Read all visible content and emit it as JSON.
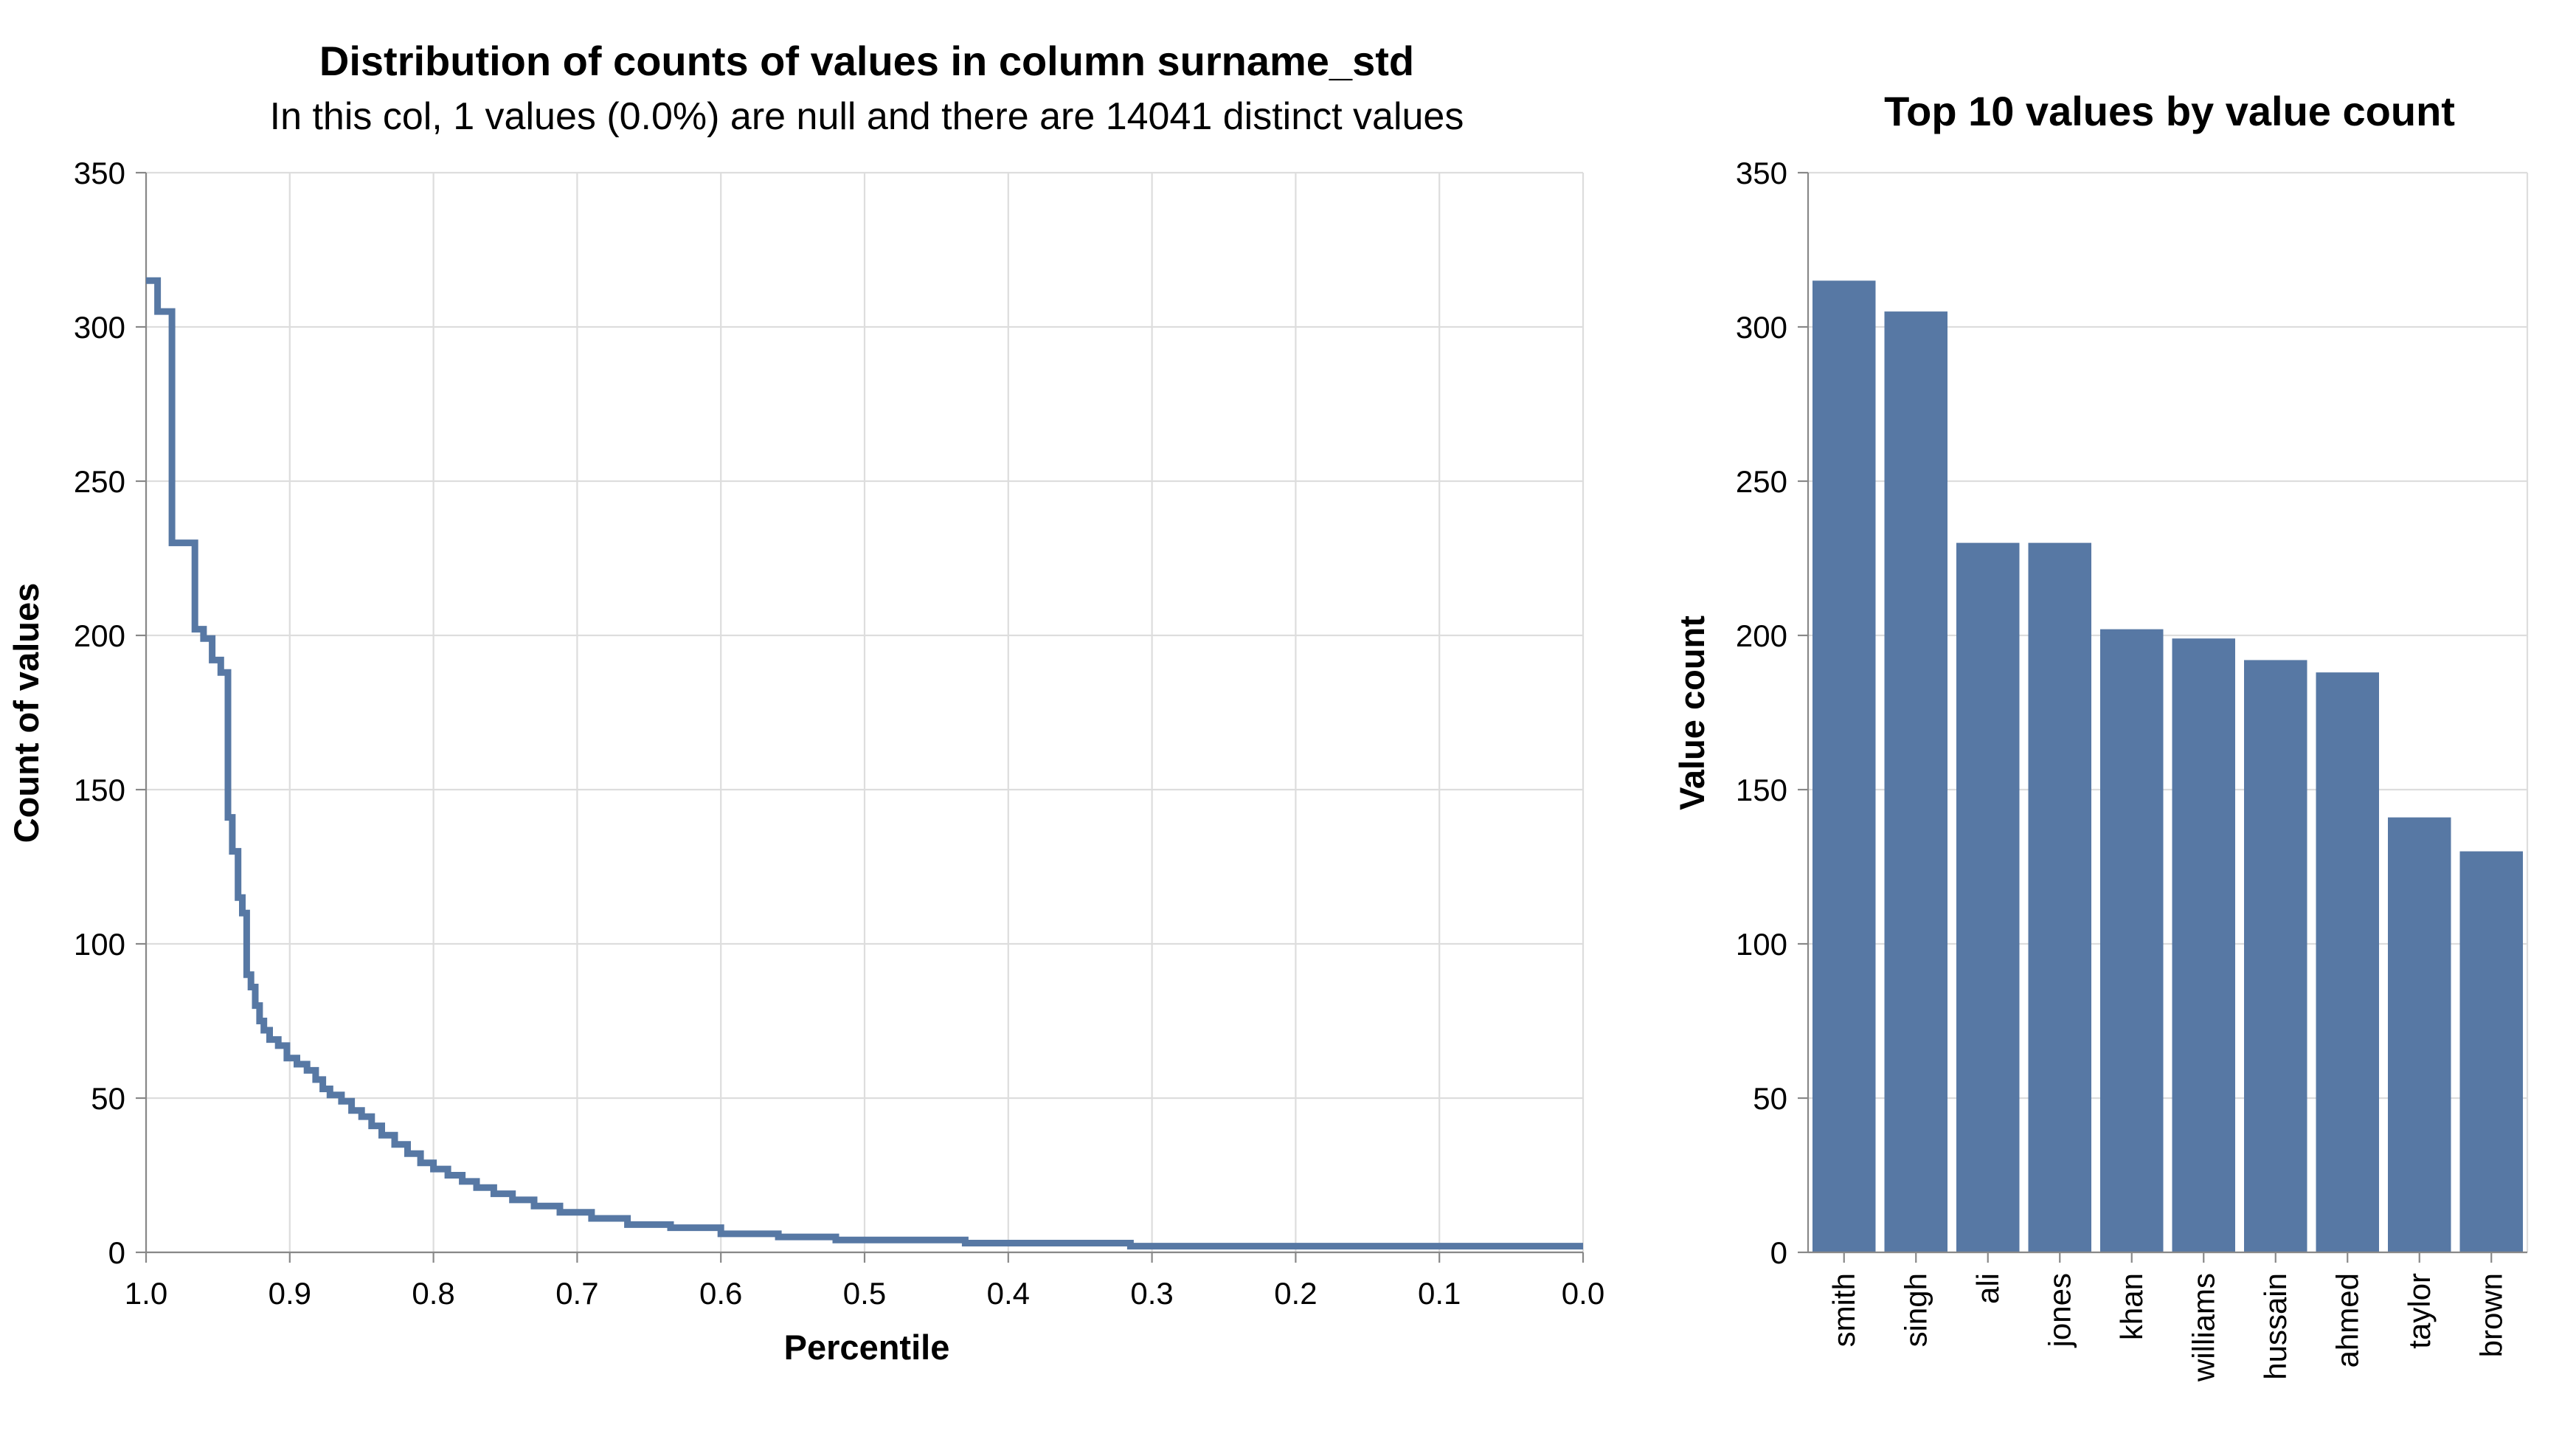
{
  "chart_data": [
    {
      "type": "line",
      "interpolation": "step",
      "title": "Distribution of counts of values in column surname_std",
      "subtitle": "In this col, 1 values (0.0%) are null and there are 14041 distinct values",
      "xlabel": "Percentile",
      "ylabel": "Count of values",
      "xlim": [
        1.0,
        0.0
      ],
      "ylim": [
        0,
        350
      ],
      "x_ticks": [
        "1.0",
        "0.9",
        "0.8",
        "0.7",
        "0.6",
        "0.5",
        "0.4",
        "0.3",
        "0.2",
        "0.1",
        "0.0"
      ],
      "y_ticks": [
        "0",
        "50",
        "100",
        "150",
        "200",
        "250",
        "300",
        "350"
      ],
      "grid": true,
      "color": "#5778a4",
      "points": [
        [
          1.0,
          315
        ],
        [
          0.992,
          315
        ],
        [
          0.992,
          305
        ],
        [
          0.982,
          305
        ],
        [
          0.982,
          230
        ],
        [
          0.966,
          230
        ],
        [
          0.966,
          202
        ],
        [
          0.96,
          202
        ],
        [
          0.96,
          199
        ],
        [
          0.954,
          199
        ],
        [
          0.954,
          192
        ],
        [
          0.948,
          192
        ],
        [
          0.948,
          188
        ],
        [
          0.943,
          188
        ],
        [
          0.943,
          141
        ],
        [
          0.94,
          141
        ],
        [
          0.94,
          130
        ],
        [
          0.936,
          130
        ],
        [
          0.936,
          115
        ],
        [
          0.933,
          115
        ],
        [
          0.933,
          110
        ],
        [
          0.93,
          110
        ],
        [
          0.93,
          90
        ],
        [
          0.927,
          90
        ],
        [
          0.927,
          86
        ],
        [
          0.924,
          86
        ],
        [
          0.924,
          80
        ],
        [
          0.921,
          80
        ],
        [
          0.921,
          75
        ],
        [
          0.918,
          75
        ],
        [
          0.918,
          72
        ],
        [
          0.914,
          72
        ],
        [
          0.914,
          69
        ],
        [
          0.908,
          69
        ],
        [
          0.908,
          67
        ],
        [
          0.902,
          67
        ],
        [
          0.902,
          63
        ],
        [
          0.895,
          63
        ],
        [
          0.895,
          61
        ],
        [
          0.888,
          61
        ],
        [
          0.888,
          59
        ],
        [
          0.882,
          59
        ],
        [
          0.882,
          56
        ],
        [
          0.877,
          56
        ],
        [
          0.877,
          53
        ],
        [
          0.872,
          53
        ],
        [
          0.872,
          51
        ],
        [
          0.864,
          51
        ],
        [
          0.864,
          49
        ],
        [
          0.857,
          49
        ],
        [
          0.857,
          46
        ],
        [
          0.85,
          46
        ],
        [
          0.85,
          44
        ],
        [
          0.843,
          44
        ],
        [
          0.843,
          41
        ],
        [
          0.836,
          41
        ],
        [
          0.836,
          38
        ],
        [
          0.827,
          38
        ],
        [
          0.827,
          35
        ],
        [
          0.818,
          35
        ],
        [
          0.818,
          32
        ],
        [
          0.809,
          32
        ],
        [
          0.809,
          29
        ],
        [
          0.8,
          29
        ],
        [
          0.8,
          27
        ],
        [
          0.79,
          27
        ],
        [
          0.79,
          25
        ],
        [
          0.78,
          25
        ],
        [
          0.78,
          23
        ],
        [
          0.77,
          23
        ],
        [
          0.77,
          21
        ],
        [
          0.758,
          21
        ],
        [
          0.758,
          19
        ],
        [
          0.745,
          19
        ],
        [
          0.745,
          17
        ],
        [
          0.73,
          17
        ],
        [
          0.73,
          15
        ],
        [
          0.712,
          15
        ],
        [
          0.712,
          13
        ],
        [
          0.69,
          13
        ],
        [
          0.69,
          11
        ],
        [
          0.665,
          11
        ],
        [
          0.665,
          9
        ],
        [
          0.635,
          9
        ],
        [
          0.635,
          8
        ],
        [
          0.6,
          8
        ],
        [
          0.6,
          6
        ],
        [
          0.56,
          6
        ],
        [
          0.56,
          5
        ],
        [
          0.52,
          5
        ],
        [
          0.52,
          4
        ],
        [
          0.43,
          4
        ],
        [
          0.43,
          3
        ],
        [
          0.315,
          3
        ],
        [
          0.315,
          2
        ],
        [
          0.0,
          2
        ]
      ]
    },
    {
      "type": "bar",
      "title": "Top 10 values by value count",
      "xlabel": "",
      "ylabel": "Value count",
      "ylim": [
        0,
        350
      ],
      "y_ticks": [
        "0",
        "50",
        "100",
        "150",
        "200",
        "250",
        "300",
        "350"
      ],
      "grid": true,
      "color": "#5778a4",
      "categories": [
        "smith",
        "singh",
        "ali",
        "jones",
        "khan",
        "williams",
        "hussain",
        "ahmed",
        "taylor",
        "brown"
      ],
      "values": [
        315,
        305,
        230,
        230,
        202,
        199,
        192,
        188,
        141,
        130
      ]
    }
  ]
}
